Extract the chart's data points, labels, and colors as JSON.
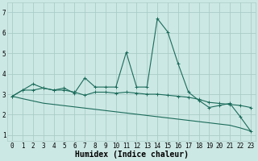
{
  "background_color": "#cce8e4",
  "grid_color": "#aaccc8",
  "line_color": "#1a6b5a",
  "xlabel": "Humidex (Indice chaleur)",
  "xlabel_fontsize": 7,
  "tick_fontsize": 5.5,
  "xlim": [
    -0.5,
    23.5
  ],
  "ylim": [
    0.7,
    7.5
  ],
  "yticks": [
    1,
    2,
    3,
    4,
    5,
    6,
    7
  ],
  "xticks": [
    0,
    1,
    2,
    3,
    4,
    5,
    6,
    7,
    8,
    9,
    10,
    11,
    12,
    13,
    14,
    15,
    16,
    17,
    18,
    19,
    20,
    21,
    22,
    23
  ],
  "series1_x": [
    0,
    1,
    2,
    3,
    4,
    5,
    6,
    7,
    8,
    9,
    10,
    11,
    12,
    13,
    14,
    15,
    16,
    17,
    18,
    19,
    20,
    21,
    22,
    23
  ],
  "series1_y": [
    2.9,
    3.2,
    3.5,
    3.3,
    3.2,
    3.3,
    3.05,
    3.8,
    3.35,
    3.35,
    3.35,
    5.05,
    3.35,
    3.35,
    6.7,
    6.05,
    4.5,
    3.1,
    2.7,
    2.35,
    2.45,
    2.55,
    1.9,
    1.2
  ],
  "series2_x": [
    0,
    1,
    2,
    3,
    4,
    5,
    6,
    7,
    8,
    9,
    10,
    11,
    12,
    13,
    14,
    15,
    16,
    17,
    18,
    19,
    20,
    21,
    22,
    23
  ],
  "series2_y": [
    2.9,
    3.2,
    3.2,
    3.3,
    3.2,
    3.2,
    3.1,
    2.95,
    3.1,
    3.1,
    3.05,
    3.1,
    3.05,
    3.0,
    3.0,
    2.95,
    2.9,
    2.85,
    2.75,
    2.6,
    2.55,
    2.5,
    2.45,
    2.35
  ],
  "series3_x": [
    0,
    1,
    2,
    3,
    4,
    5,
    6,
    7,
    8,
    9,
    10,
    11,
    12,
    13,
    14,
    15,
    16,
    17,
    18,
    19,
    20,
    21,
    22,
    23
  ],
  "series3_y": [
    2.9,
    2.78,
    2.67,
    2.56,
    2.5,
    2.44,
    2.38,
    2.32,
    2.26,
    2.2,
    2.14,
    2.08,
    2.02,
    1.96,
    1.9,
    1.84,
    1.78,
    1.72,
    1.66,
    1.6,
    1.54,
    1.48,
    1.35,
    1.2
  ]
}
